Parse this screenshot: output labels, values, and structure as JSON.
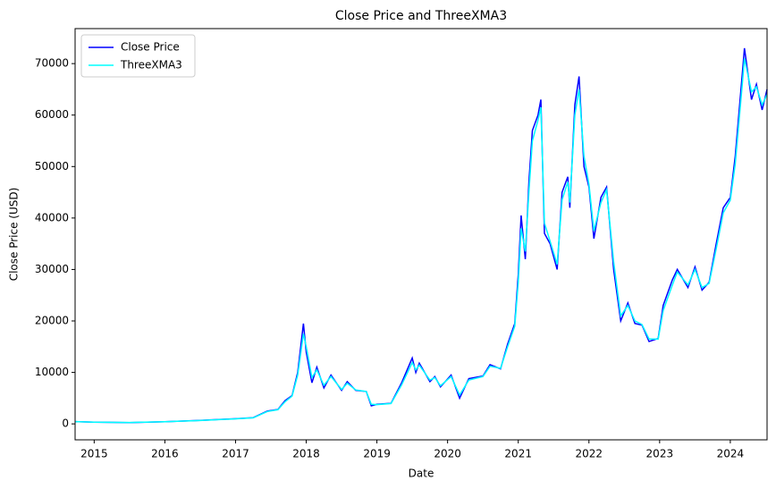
{
  "chart_data": {
    "type": "line",
    "title": "Close Price and ThreeXMA3",
    "x_label": "Date",
    "y_label": "Close Price (USD)",
    "x": [
      2014.73,
      2015.0,
      2015.5,
      2016.0,
      2016.5,
      2017.0,
      2017.25,
      2017.45,
      2017.6,
      2017.7,
      2017.8,
      2017.88,
      2017.96,
      2018.0,
      2018.08,
      2018.15,
      2018.25,
      2018.35,
      2018.5,
      2018.58,
      2018.7,
      2018.85,
      2018.92,
      2019.0,
      2019.2,
      2019.35,
      2019.5,
      2019.55,
      2019.6,
      2019.75,
      2019.82,
      2019.9,
      2020.05,
      2020.17,
      2020.3,
      2020.5,
      2020.6,
      2020.75,
      2020.85,
      2020.95,
      2021.0,
      2021.04,
      2021.1,
      2021.15,
      2021.2,
      2021.28,
      2021.32,
      2021.37,
      2021.45,
      2021.55,
      2021.62,
      2021.7,
      2021.73,
      2021.8,
      2021.86,
      2021.93,
      2022.0,
      2022.07,
      2022.17,
      2022.25,
      2022.35,
      2022.45,
      2022.55,
      2022.65,
      2022.75,
      2022.85,
      2022.98,
      2023.05,
      2023.18,
      2023.25,
      2023.4,
      2023.5,
      2023.6,
      2023.7,
      2023.8,
      2023.9,
      2024.0,
      2024.07,
      2024.17,
      2024.2,
      2024.3,
      2024.37,
      2024.45,
      2024.52
    ],
    "series": [
      {
        "name": "Close Price",
        "color": "blue",
        "values": [
          450,
          320,
          260,
          430,
          670,
          1000,
          1200,
          2500,
          2800,
          4500,
          5500,
          10000,
          19500,
          14000,
          8000,
          11000,
          7000,
          9500,
          6500,
          8200,
          6500,
          6300,
          3500,
          3800,
          4000,
          8000,
          12800,
          10000,
          11800,
          8200,
          9200,
          7200,
          9500,
          5000,
          8800,
          9300,
          11500,
          10700,
          15500,
          19500,
          29000,
          40500,
          32000,
          47000,
          57000,
          60000,
          63000,
          37000,
          35000,
          30000,
          45000,
          48000,
          42000,
          62000,
          67500,
          50000,
          46000,
          36000,
          44000,
          46000,
          30000,
          20000,
          23500,
          19500,
          19200,
          16000,
          16600,
          23000,
          28000,
          30000,
          26500,
          30500,
          26000,
          27500,
          35000,
          42000,
          44000,
          52000,
          68000,
          73000,
          63000,
          66000,
          61000,
          65000
        ]
      },
      {
        "name": "ThreeXMA3",
        "color": "cyan",
        "values": [
          450,
          330,
          265,
          420,
          650,
          980,
          1180,
          2400,
          2750,
          4300,
          5400,
          9500,
          17500,
          15000,
          9000,
          10500,
          7500,
          9200,
          6700,
          7900,
          6600,
          6300,
          3800,
          3750,
          3950,
          7600,
          11900,
          10500,
          11400,
          8500,
          9000,
          7400,
          9200,
          5600,
          8500,
          9200,
          11200,
          10800,
          15000,
          19000,
          27500,
          38000,
          33500,
          45000,
          55000,
          59000,
          61500,
          39000,
          35500,
          31000,
          43500,
          47000,
          43000,
          60000,
          65000,
          52000,
          46500,
          37500,
          43000,
          45500,
          31500,
          21000,
          23000,
          20000,
          19300,
          16500,
          16500,
          22000,
          27000,
          29500,
          27000,
          30000,
          26500,
          27300,
          34000,
          41000,
          43500,
          50500,
          66000,
          71000,
          64500,
          65500,
          62000,
          64000
        ]
      }
    ],
    "xlim": [
      2014.73,
      2024.52
    ],
    "xticks": [
      2015,
      2016,
      2017,
      2018,
      2019,
      2020,
      2021,
      2022,
      2023,
      2024
    ],
    "ylim": [
      -3100,
      76800
    ],
    "yticks": [
      0,
      10000,
      20000,
      30000,
      40000,
      50000,
      60000,
      70000
    ],
    "legend": "upper left"
  }
}
